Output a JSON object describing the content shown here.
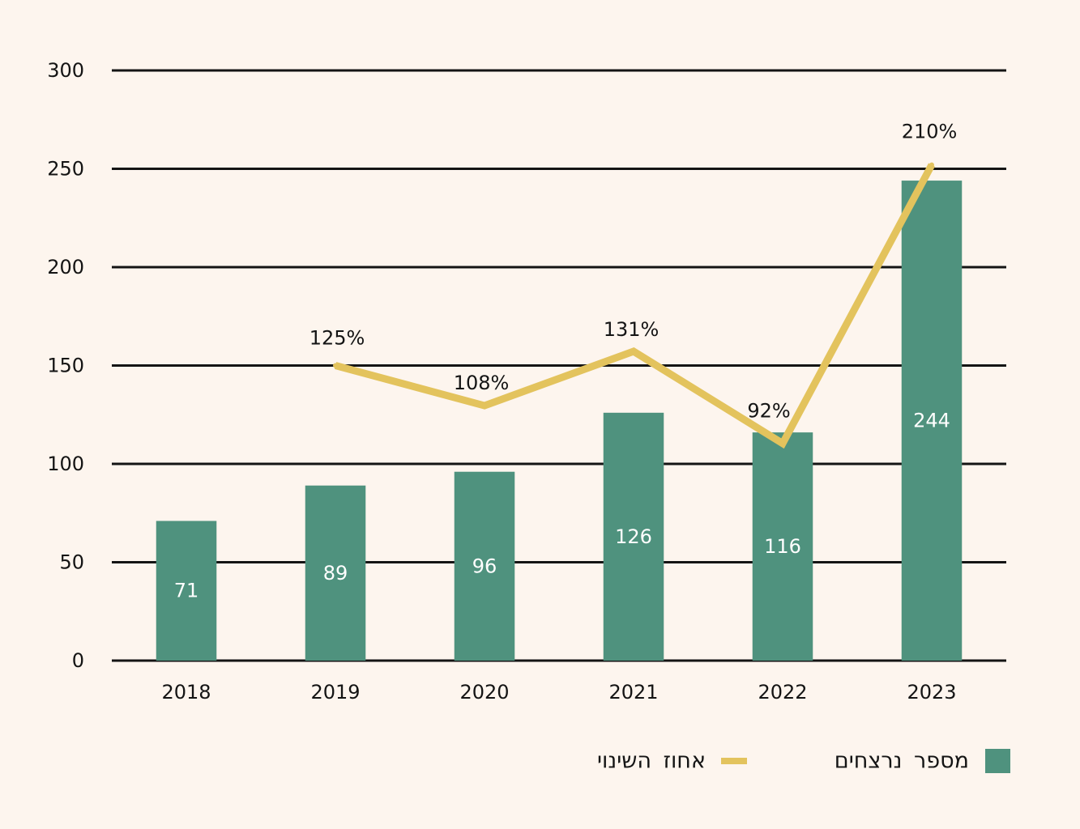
{
  "chart_data": {
    "type": "bar",
    "categories": [
      "2018",
      "2019",
      "2020",
      "2021",
      "2022",
      "2023"
    ],
    "ylim": [
      0,
      300
    ],
    "yticks": [
      0,
      50,
      100,
      150,
      200,
      250,
      300
    ],
    "grid": true,
    "legend_position": "bottom-right",
    "series": [
      {
        "name": "מספר נרצחים",
        "type": "bar",
        "values": [
          71,
          89,
          96,
          126,
          116,
          244
        ],
        "color": "#4f927e",
        "label_color": "#ffffff"
      },
      {
        "name": "אחוז השינוי",
        "type": "line",
        "axis": "secondary",
        "ylim": [
          0,
          250
        ],
        "values": [
          null,
          125,
          108,
          131,
          92,
          210
        ],
        "labels": [
          null,
          "125%",
          "108%",
          "131%",
          "92%",
          "210%"
        ],
        "color": "#e3c35d"
      }
    ]
  },
  "colors": {
    "background": "#fdf5ee",
    "gridline": "#141414",
    "text": "#141414"
  }
}
